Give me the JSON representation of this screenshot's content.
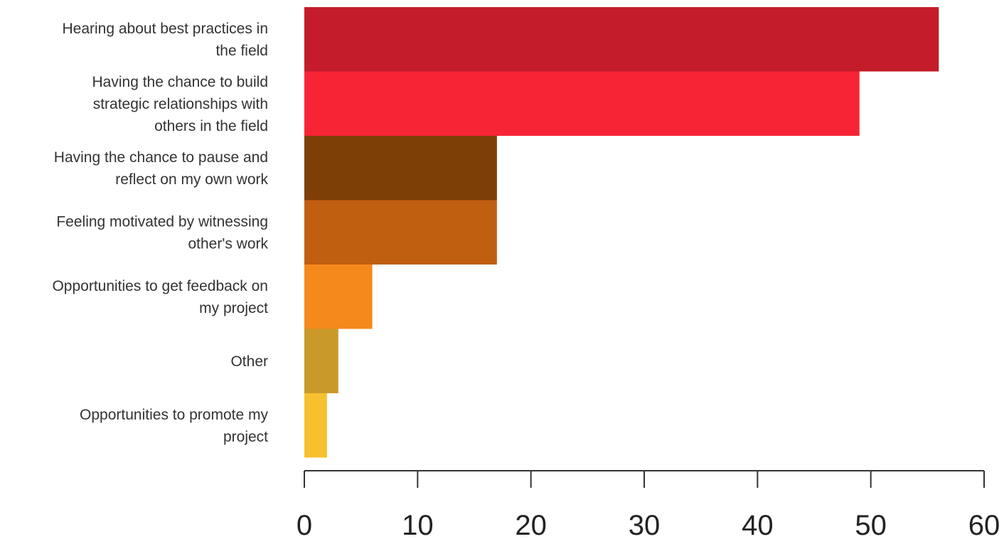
{
  "chart_data": {
    "type": "bar",
    "orientation": "horizontal",
    "title": "",
    "xlabel": "",
    "ylabel": "",
    "categories": [
      [
        "Hearing about best practices in",
        "the field"
      ],
      [
        "Having the chance to build",
        "strategic relationships with",
        "others in the field"
      ],
      [
        "Having the chance to pause and",
        "reflect on my own work"
      ],
      [
        "Feeling motivated by witnessing",
        "other's work"
      ],
      [
        "Opportunities to get feedback on",
        "my project"
      ],
      [
        "Other"
      ],
      [
        "Opportunities to promote my",
        "project"
      ]
    ],
    "values": [
      56,
      49,
      17,
      17,
      6,
      3,
      2
    ],
    "colors": [
      "#c41c2a",
      "#f72436",
      "#7e3f06",
      "#c15f11",
      "#f5891b",
      "#c99a2a",
      "#f7c02e"
    ],
    "xlim": [
      0,
      60
    ],
    "xticks": [
      0,
      10,
      20,
      30,
      40,
      50,
      60
    ],
    "grid": false,
    "legend": "none"
  }
}
